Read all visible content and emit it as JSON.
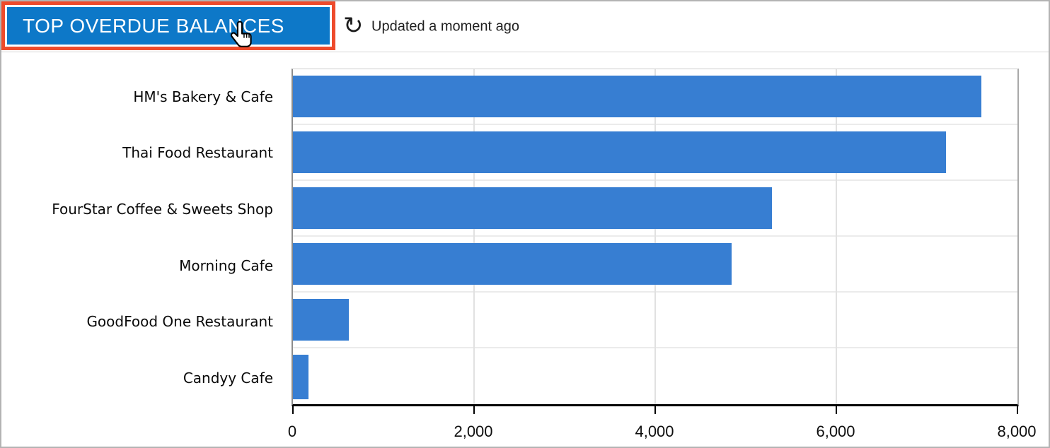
{
  "header": {
    "title": "TOP OVERDUE BALANCES",
    "updated": "Updated a moment ago",
    "refresh_glyph": "↻"
  },
  "colors": {
    "bar": "#377ed2",
    "button_bg": "#0d78c8",
    "highlight_border": "#ee4b2c"
  },
  "chart_data": {
    "type": "bar",
    "orientation": "horizontal",
    "title": "TOP OVERDUE BALANCES",
    "categories": [
      "HM's Bakery & Cafe",
      "Thai Food Restaurant",
      "FourStar Coffee & Sweets Shop",
      "Morning Cafe",
      "GoodFood One Restaurant",
      "Candyy Cafe"
    ],
    "values": [
      7600,
      7210,
      5290,
      4840,
      620,
      170
    ],
    "xlabel": "",
    "ylabel": "",
    "xlim": [
      0,
      8000
    ],
    "xticks": [
      0,
      2000,
      4000,
      6000,
      8000
    ],
    "xtick_labels": [
      "0",
      "2,000",
      "4,000",
      "6,000",
      "8,000"
    ],
    "grid": true,
    "legend": false,
    "bar_color": "#377ed2"
  }
}
